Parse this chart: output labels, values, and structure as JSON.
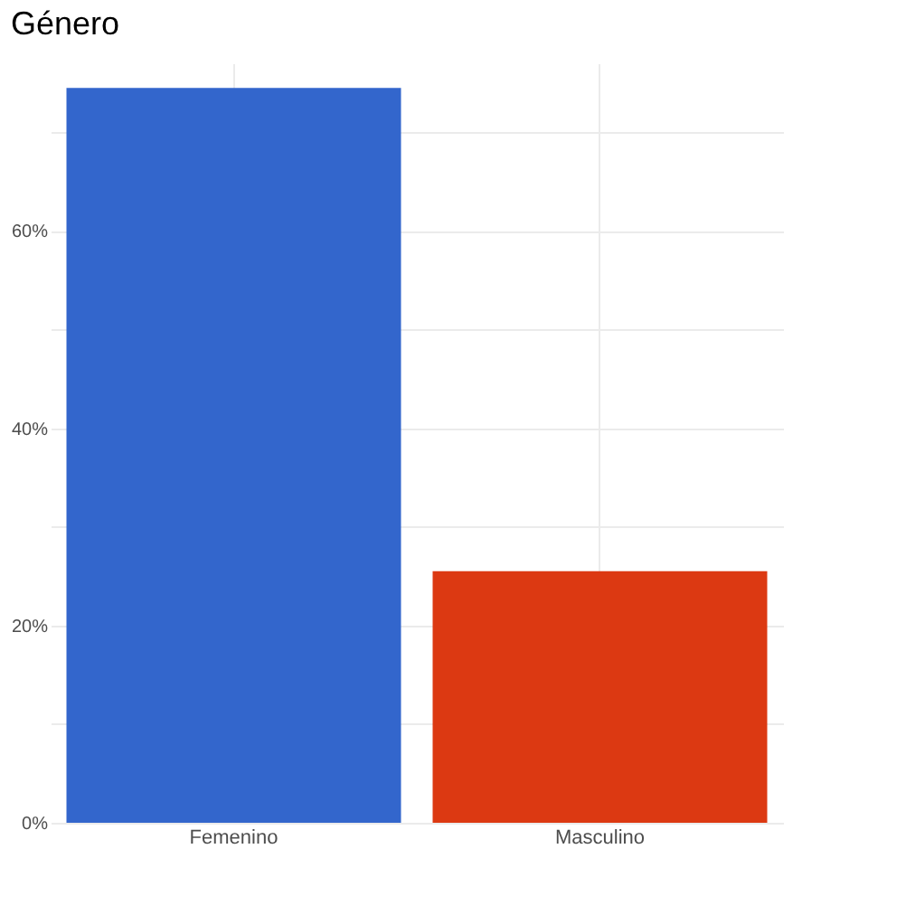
{
  "chart_data": {
    "type": "bar",
    "title": "Género",
    "categories": [
      "Femenino",
      "Masculino"
    ],
    "values": [
      74.5,
      25.5
    ],
    "colors": [
      "#3366cc",
      "#dc3912"
    ],
    "ylim": [
      0,
      77
    ],
    "yticks": [
      {
        "value": 0,
        "label": "0%"
      },
      {
        "value": 10,
        "label": null
      },
      {
        "value": 20,
        "label": "20%"
      },
      {
        "value": 30,
        "label": null
      },
      {
        "value": 40,
        "label": "40%"
      },
      {
        "value": 50,
        "label": null
      },
      {
        "value": 60,
        "label": "60%"
      },
      {
        "value": 70,
        "label": null
      }
    ],
    "grid": true
  }
}
